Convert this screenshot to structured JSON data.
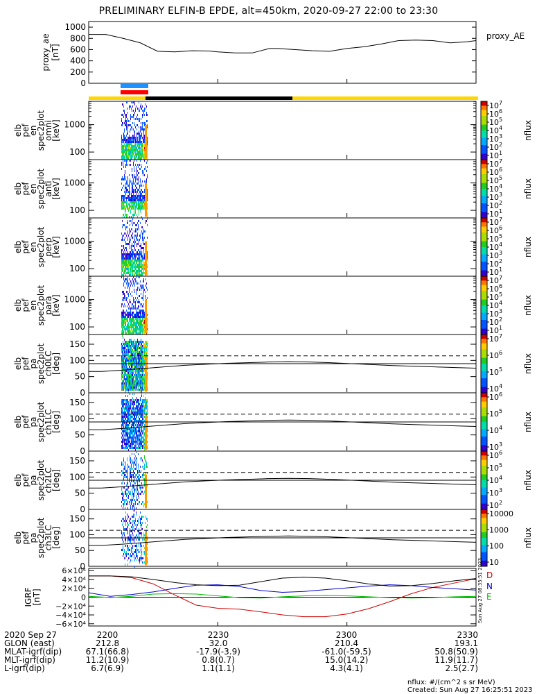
{
  "title": "PRELIMINARY ELFIN-B EPDE, alt=450km, 2020-09-27 22:00 to 23:30",
  "chart_data": [
    {
      "type": "line",
      "name": "proxy_AE",
      "ylabel": "proxy_ae\n[nT]",
      "legend": "proxy_AE",
      "ylim": [
        0,
        1100
      ],
      "yticks": [
        0,
        200,
        400,
        600,
        800,
        1000
      ],
      "x_minutes": [
        0,
        4,
        8,
        12,
        16,
        20,
        24,
        28,
        30,
        34,
        38,
        42,
        44,
        48,
        52,
        56,
        60,
        64,
        68,
        72,
        76,
        80,
        84,
        88,
        90
      ],
      "values": [
        870,
        870,
        800,
        720,
        570,
        560,
        580,
        575,
        560,
        540,
        540,
        620,
        620,
        600,
        580,
        570,
        620,
        650,
        700,
        760,
        770,
        760,
        720,
        740,
        760
      ]
    },
    {
      "type": "heatmap",
      "name": "elb_pef_en_spec2plot_omni",
      "ylabel": "elb pef en spec2plot omni [keV]",
      "yticks": [
        "1000",
        "100"
      ],
      "colorbar": {
        "ticks": [
          "10^7",
          "10^6",
          "10^5",
          "10^4",
          "10^3",
          "10^2",
          "10^1"
        ],
        "label": "nflux"
      },
      "data_window_minutes": [
        3,
        5.5
      ]
    },
    {
      "type": "heatmap",
      "name": "elb_pef_en_spec2plot_anti",
      "ylabel": "elb pef en spec2plot anti [keV]",
      "yticks": [
        "1000",
        "100"
      ],
      "colorbar": {
        "ticks": [
          "10^7",
          "10^6",
          "10^5",
          "10^4",
          "10^3",
          "10^2",
          "10^1"
        ],
        "label": "nflux"
      },
      "data_window_minutes": [
        3,
        5.5
      ]
    },
    {
      "type": "heatmap",
      "name": "elb_pef_en_spec2plot_perp",
      "ylabel": "elb pef en spec2plot perp [keV]",
      "yticks": [
        "1000",
        "100"
      ],
      "colorbar": {
        "ticks": [
          "10^7",
          "10^6",
          "10^5",
          "10^4",
          "10^3",
          "10^2",
          "10^1"
        ],
        "label": "nflux"
      },
      "data_window_minutes": [
        3,
        5.5
      ]
    },
    {
      "type": "heatmap",
      "name": "elb_pef_en_spec2plot_para",
      "ylabel": "elb pef en spec2plot para [keV]",
      "yticks": [
        "1000",
        "100"
      ],
      "colorbar": {
        "ticks": [
          "10^7",
          "10^6",
          "10^5",
          "10^4",
          "10^3",
          "10^2",
          "10^1"
        ],
        "label": "nflux"
      },
      "data_window_minutes": [
        3,
        5.5
      ]
    },
    {
      "type": "heatmap",
      "name": "elb_pef_pa_spec2plot_ch0LC",
      "ylabel": "elb pef pa spec2plot ch0LC [deg]",
      "yticks": [
        0,
        50,
        100,
        150
      ],
      "ylim": [
        0,
        180
      ],
      "colorbar": {
        "ticks": [
          "10^7",
          "10^6",
          "10^5",
          "10^4"
        ],
        "label": "nflux"
      },
      "loss_cone_deg": [
        66,
        70,
        75,
        80,
        85,
        88,
        91,
        93,
        95,
        96,
        95,
        93,
        90,
        87,
        84,
        82,
        80,
        78,
        76
      ],
      "anti_loss_cone_deg": [
        114,
        110,
        105,
        100,
        95,
        92,
        89,
        87,
        85,
        84,
        85,
        87,
        90,
        93,
        96,
        98,
        100,
        102,
        104
      ]
    },
    {
      "type": "heatmap",
      "name": "elb_pef_pa_spec2plot_ch1LC",
      "ylabel": "elb pef pa spec2plot ch1LC [deg]",
      "yticks": [
        0,
        50,
        100,
        150
      ],
      "ylim": [
        0,
        180
      ],
      "colorbar": {
        "ticks": [
          "10^6",
          "10^5",
          "10^4",
          "10^3"
        ],
        "label": "nflux"
      }
    },
    {
      "type": "heatmap",
      "name": "elb_pef_pa_spec2plot_ch2LC",
      "ylabel": "elb pef pa spec2plot ch2LC [deg]",
      "yticks": [
        0,
        50,
        100,
        150
      ],
      "ylim": [
        0,
        180
      ],
      "colorbar": {
        "ticks": [
          "10^6",
          "10^5",
          "10^4",
          "10^3",
          "10^2"
        ],
        "label": "nflux"
      }
    },
    {
      "type": "heatmap",
      "name": "elb_pef_pa_spec2plot_ch3LC",
      "ylabel": "elb pef pa spec2plot ch3LC [deg]",
      "yticks": [
        0,
        50,
        100,
        150
      ],
      "ylim": [
        0,
        180
      ],
      "colorbar": {
        "ticks": [
          "10000",
          "1000",
          "100",
          "10"
        ],
        "label": "nflux"
      }
    },
    {
      "type": "line",
      "name": "IGRF",
      "ylabel": "IGRF [nT]",
      "ylim": [
        -65000,
        65000
      ],
      "yticks": [
        "6×10⁴",
        "4×10⁴",
        "2×10⁴",
        "0",
        "−2×10⁴",
        "−4×10⁴",
        "−6×10⁴"
      ],
      "x_minutes": [
        0,
        5,
        10,
        15,
        20,
        25,
        30,
        35,
        40,
        45,
        50,
        55,
        60,
        65,
        70,
        75,
        80,
        85,
        90
      ],
      "series": [
        {
          "name": "D",
          "color": "#cc0000",
          "values": [
            48000,
            48000,
            44000,
            30000,
            5000,
            -18000,
            -25000,
            -27000,
            -33000,
            -40000,
            -44000,
            -44000,
            -38000,
            -26000,
            -10000,
            8000,
            22000,
            32000,
            42000
          ]
        },
        {
          "name": "N",
          "color": "#0000cc",
          "values": [
            10000,
            2000,
            6000,
            12000,
            20000,
            27000,
            28000,
            24000,
            15000,
            11000,
            13000,
            17000,
            21000,
            25000,
            28000,
            26000,
            22000,
            19000,
            16000
          ]
        },
        {
          "name": "E",
          "color": "#00bb00",
          "values": [
            2000,
            -500,
            2000,
            7000,
            8000,
            7000,
            3000,
            -1000,
            -2000,
            1000,
            3000,
            4000,
            3000,
            1000,
            -1000,
            -2000,
            -1000,
            1000,
            2000
          ]
        },
        {
          "name": "total",
          "color": "#000000",
          "values": [
            48000,
            48000,
            46000,
            40000,
            33000,
            28000,
            26000,
            27000,
            35000,
            43000,
            45000,
            43000,
            37000,
            30000,
            25000,
            26000,
            31000,
            37000,
            42000
          ]
        }
      ]
    }
  ],
  "orbit_bars": {
    "upper_colors": [
      "#1e90ff",
      "#ff0000"
    ],
    "strip_segments": [
      {
        "color": "#ffd700"
      },
      {
        "color": "#000000"
      },
      {
        "color": "#ffd700"
      }
    ]
  },
  "footer": {
    "rows": [
      {
        "label": "2020 Sep 27",
        "vals": [
          "2200",
          "2230",
          "2300",
          "2330"
        ]
      },
      {
        "label": "GLON (east)",
        "vals": [
          "212.8",
          "32.0",
          "210.4",
          "193.1"
        ]
      },
      {
        "label": "MLAT-igrf(dip)",
        "vals": [
          "67.1(66.8)",
          "-17.9(-3.9)",
          "-61.0(-59.5)",
          "50.8(50.9)"
        ]
      },
      {
        "label": "MLT-igrf(dip)",
        "vals": [
          "11.2(10.9)",
          "0.8(0.7)",
          "15.0(14.2)",
          "11.9(11.7)"
        ]
      },
      {
        "label": "L-igrf(dip)",
        "vals": [
          "6.7(6.9)",
          "1.1(1.1)",
          "4.3(4.1)",
          "2.5(2.7)"
        ]
      }
    ],
    "units_note": "nflux: #/(cm^2 s sr MeV)",
    "created": "Created: Sun Aug 27 16:25:51 2023",
    "side_stamp": "Sun Aug 27 08:35:51 2023"
  },
  "legend_labels": {
    "proxy": "proxy_AE",
    "D": "D",
    "N": "N",
    "E": "E",
    "nflux": "nflux"
  }
}
